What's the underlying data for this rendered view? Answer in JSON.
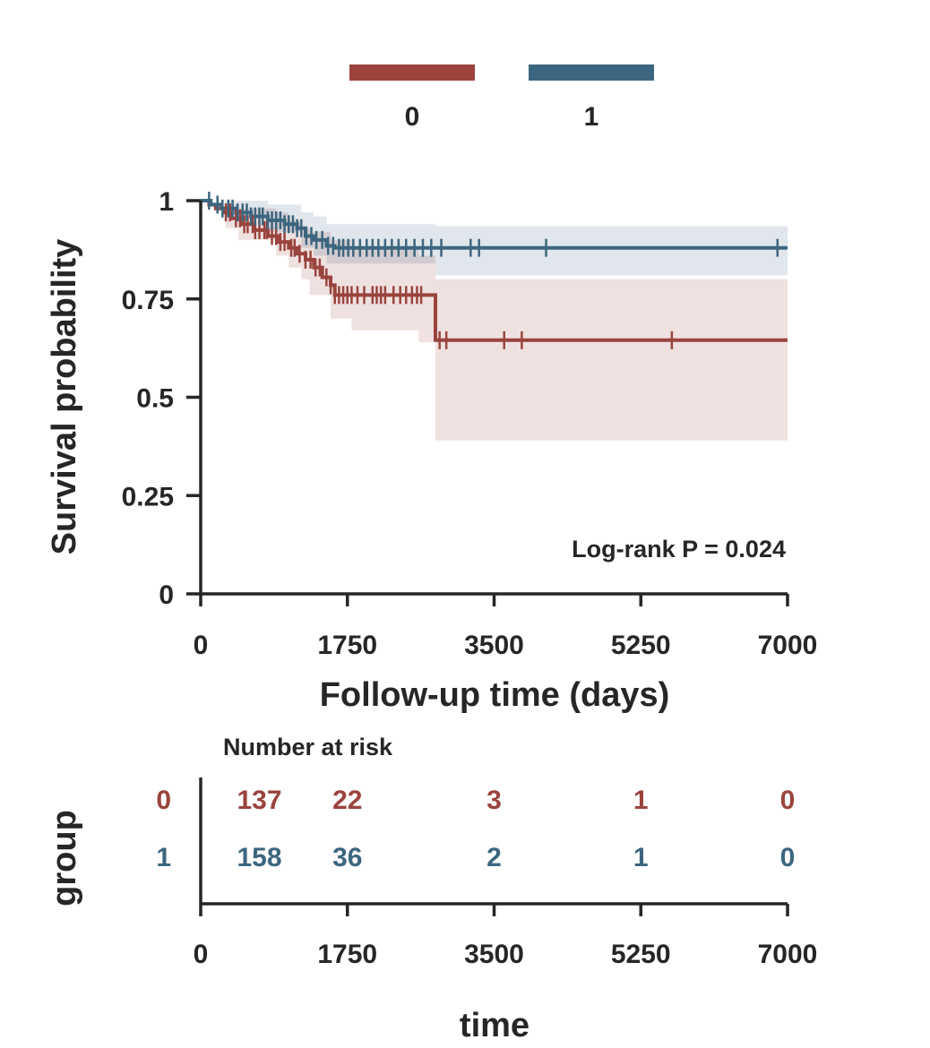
{
  "chart_data": {
    "type": "line",
    "subtype": "kaplan-meier",
    "legend": {
      "placement": "top-center",
      "entries": [
        "0",
        "1"
      ]
    },
    "colors": {
      "0": "#9a443d",
      "1": "#3c6680",
      "axis": "#262626"
    },
    "xlabel": "Follow-up time (days)",
    "ylabel": "Survival probability",
    "xlim": [
      0,
      7000
    ],
    "ylim": [
      0,
      1
    ],
    "x_ticks": [
      0,
      1750,
      3500,
      5250,
      7000
    ],
    "x_tick_labels": [
      "0",
      "1750",
      "3500",
      "5250",
      "7000"
    ],
    "y_ticks": [
      0,
      0.25,
      0.5,
      0.75,
      1
    ],
    "y_tick_labels": [
      "0",
      "0.25",
      "0.5",
      "0.75",
      "1"
    ],
    "annotation": "Log-rank P = 0.024",
    "grid": false,
    "series": [
      {
        "name": "0",
        "steps": [
          [
            0,
            1.0
          ],
          [
            100,
            0.99
          ],
          [
            180,
            0.98
          ],
          [
            280,
            0.97
          ],
          [
            360,
            0.955
          ],
          [
            480,
            0.94
          ],
          [
            640,
            0.925
          ],
          [
            800,
            0.91
          ],
          [
            930,
            0.895
          ],
          [
            1050,
            0.88
          ],
          [
            1150,
            0.865
          ],
          [
            1250,
            0.85
          ],
          [
            1350,
            0.83
          ],
          [
            1450,
            0.805
          ],
          [
            1550,
            0.785
          ],
          [
            1600,
            0.76
          ],
          [
            2800,
            0.645
          ],
          [
            7000,
            0.645
          ]
        ],
        "ci_steps": [
          [
            0,
            1.0,
            1.0
          ],
          [
            300,
            0.93,
            0.99
          ],
          [
            450,
            0.9,
            0.98
          ],
          [
            900,
            0.86,
            0.97
          ],
          [
            1050,
            0.83,
            0.95
          ],
          [
            1200,
            0.8,
            0.93
          ],
          [
            1300,
            0.76,
            0.92
          ],
          [
            1550,
            0.7,
            0.9
          ],
          [
            1800,
            0.67,
            0.88
          ],
          [
            2600,
            0.64,
            0.86
          ],
          [
            2800,
            0.39,
            0.8
          ],
          [
            7000,
            0.39,
            0.79
          ]
        ],
        "censor_times": [
          300,
          350,
          420,
          470,
          520,
          560,
          620,
          650,
          700,
          760,
          790,
          850,
          900,
          950,
          1000,
          1080,
          1120,
          1180,
          1250,
          1310,
          1370,
          1420,
          1500,
          1550,
          1600,
          1650,
          1700,
          1750,
          1800,
          1870,
          1950,
          2050,
          2100,
          2150,
          2200,
          2300,
          2380,
          2450,
          2520,
          2580,
          2630,
          2850,
          2930,
          3620,
          3830,
          5620
        ]
      },
      {
        "name": "1",
        "steps": [
          [
            0,
            1.0
          ],
          [
            120,
            0.99
          ],
          [
            250,
            0.98
          ],
          [
            420,
            0.97
          ],
          [
            600,
            0.96
          ],
          [
            800,
            0.95
          ],
          [
            1000,
            0.94
          ],
          [
            1150,
            0.93
          ],
          [
            1250,
            0.91
          ],
          [
            1350,
            0.9
          ],
          [
            1500,
            0.885
          ],
          [
            1600,
            0.88
          ],
          [
            7000,
            0.88
          ]
        ],
        "ci_steps": [
          [
            0,
            1.0,
            1.0
          ],
          [
            300,
            0.96,
            1.0
          ],
          [
            800,
            0.92,
            0.99
          ],
          [
            1200,
            0.88,
            0.97
          ],
          [
            1350,
            0.86,
            0.96
          ],
          [
            1500,
            0.84,
            0.94
          ],
          [
            2800,
            0.81,
            0.935
          ],
          [
            7000,
            0.81,
            0.935
          ]
        ],
        "censor_times": [
          100,
          200,
          260,
          330,
          380,
          440,
          500,
          550,
          600,
          650,
          700,
          740,
          800,
          850,
          900,
          950,
          1000,
          1050,
          1100,
          1150,
          1200,
          1260,
          1320,
          1380,
          1450,
          1520,
          1580,
          1650,
          1700,
          1760,
          1820,
          1900,
          1980,
          2050,
          2120,
          2200,
          2280,
          2360,
          2450,
          2550,
          2650,
          2750,
          2870,
          3220,
          3320,
          4120,
          6880
        ]
      }
    ]
  },
  "risk_table": {
    "title": "Number at risk",
    "ylabel": "group",
    "xlabel": "time",
    "times": [
      0,
      1750,
      3500,
      5250,
      7000
    ],
    "tick_labels": [
      "0",
      "1750",
      "3500",
      "5250",
      "7000"
    ],
    "positions": [
      700,
      1750,
      3500,
      5250,
      7000
    ],
    "rows": [
      {
        "group": "0",
        "counts": [
          "137",
          "22",
          "3",
          "1",
          "0"
        ]
      },
      {
        "group": "1",
        "counts": [
          "158",
          "36",
          "2",
          "1",
          "0"
        ]
      }
    ]
  }
}
